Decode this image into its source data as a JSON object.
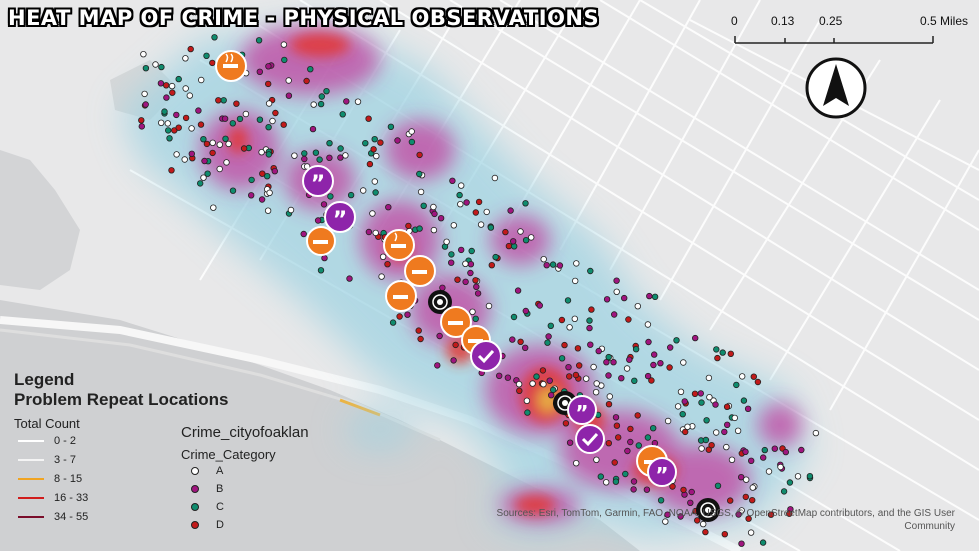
{
  "title": "HEAT MAP OF CRIME - PHYSICAL OBSERVATIONS",
  "scale_bar": {
    "labels": [
      "0",
      "0.13",
      "0.25",
      "0.5 Miles"
    ]
  },
  "north_arrow": {
    "icon": "north-arrow-icon"
  },
  "legend": {
    "title": "Legend",
    "subtitle": "Problem Repeat Locations",
    "total_count_title": "Total Count",
    "total_count_items": [
      {
        "label": "0 - 2",
        "color": "#ffffff"
      },
      {
        "label": "3 - 7",
        "color": "#f4f4f4"
      },
      {
        "label": "8 - 15",
        "color": "#f0a422"
      },
      {
        "label": "16 - 33",
        "color": "#d11c1c"
      },
      {
        "label": "34 - 55",
        "color": "#7a0d2a"
      }
    ]
  },
  "crime_legend": {
    "layer": "Crime_cityofoaklan",
    "field": "Crime_Category",
    "items": [
      {
        "label": "A",
        "color": "#ffffff"
      },
      {
        "label": "B",
        "color": "#a0157f"
      },
      {
        "label": "C",
        "color": "#0f8c6e"
      },
      {
        "label": "D",
        "color": "#c21a1a"
      }
    ]
  },
  "attribution": "Sources: Esri, TomTom, Garmin, FAO, NOAA, USGS, © OpenStreetMap contributors, and the GIS User Community",
  "markers": {
    "icons": [
      "smoking-icon",
      "quote-icon",
      "check-icon",
      "target-icon"
    ],
    "colors": {
      "smoking": "#ef7a1f",
      "quote": "#8e24aa",
      "check": "#8e24aa",
      "target": "#111111"
    }
  }
}
